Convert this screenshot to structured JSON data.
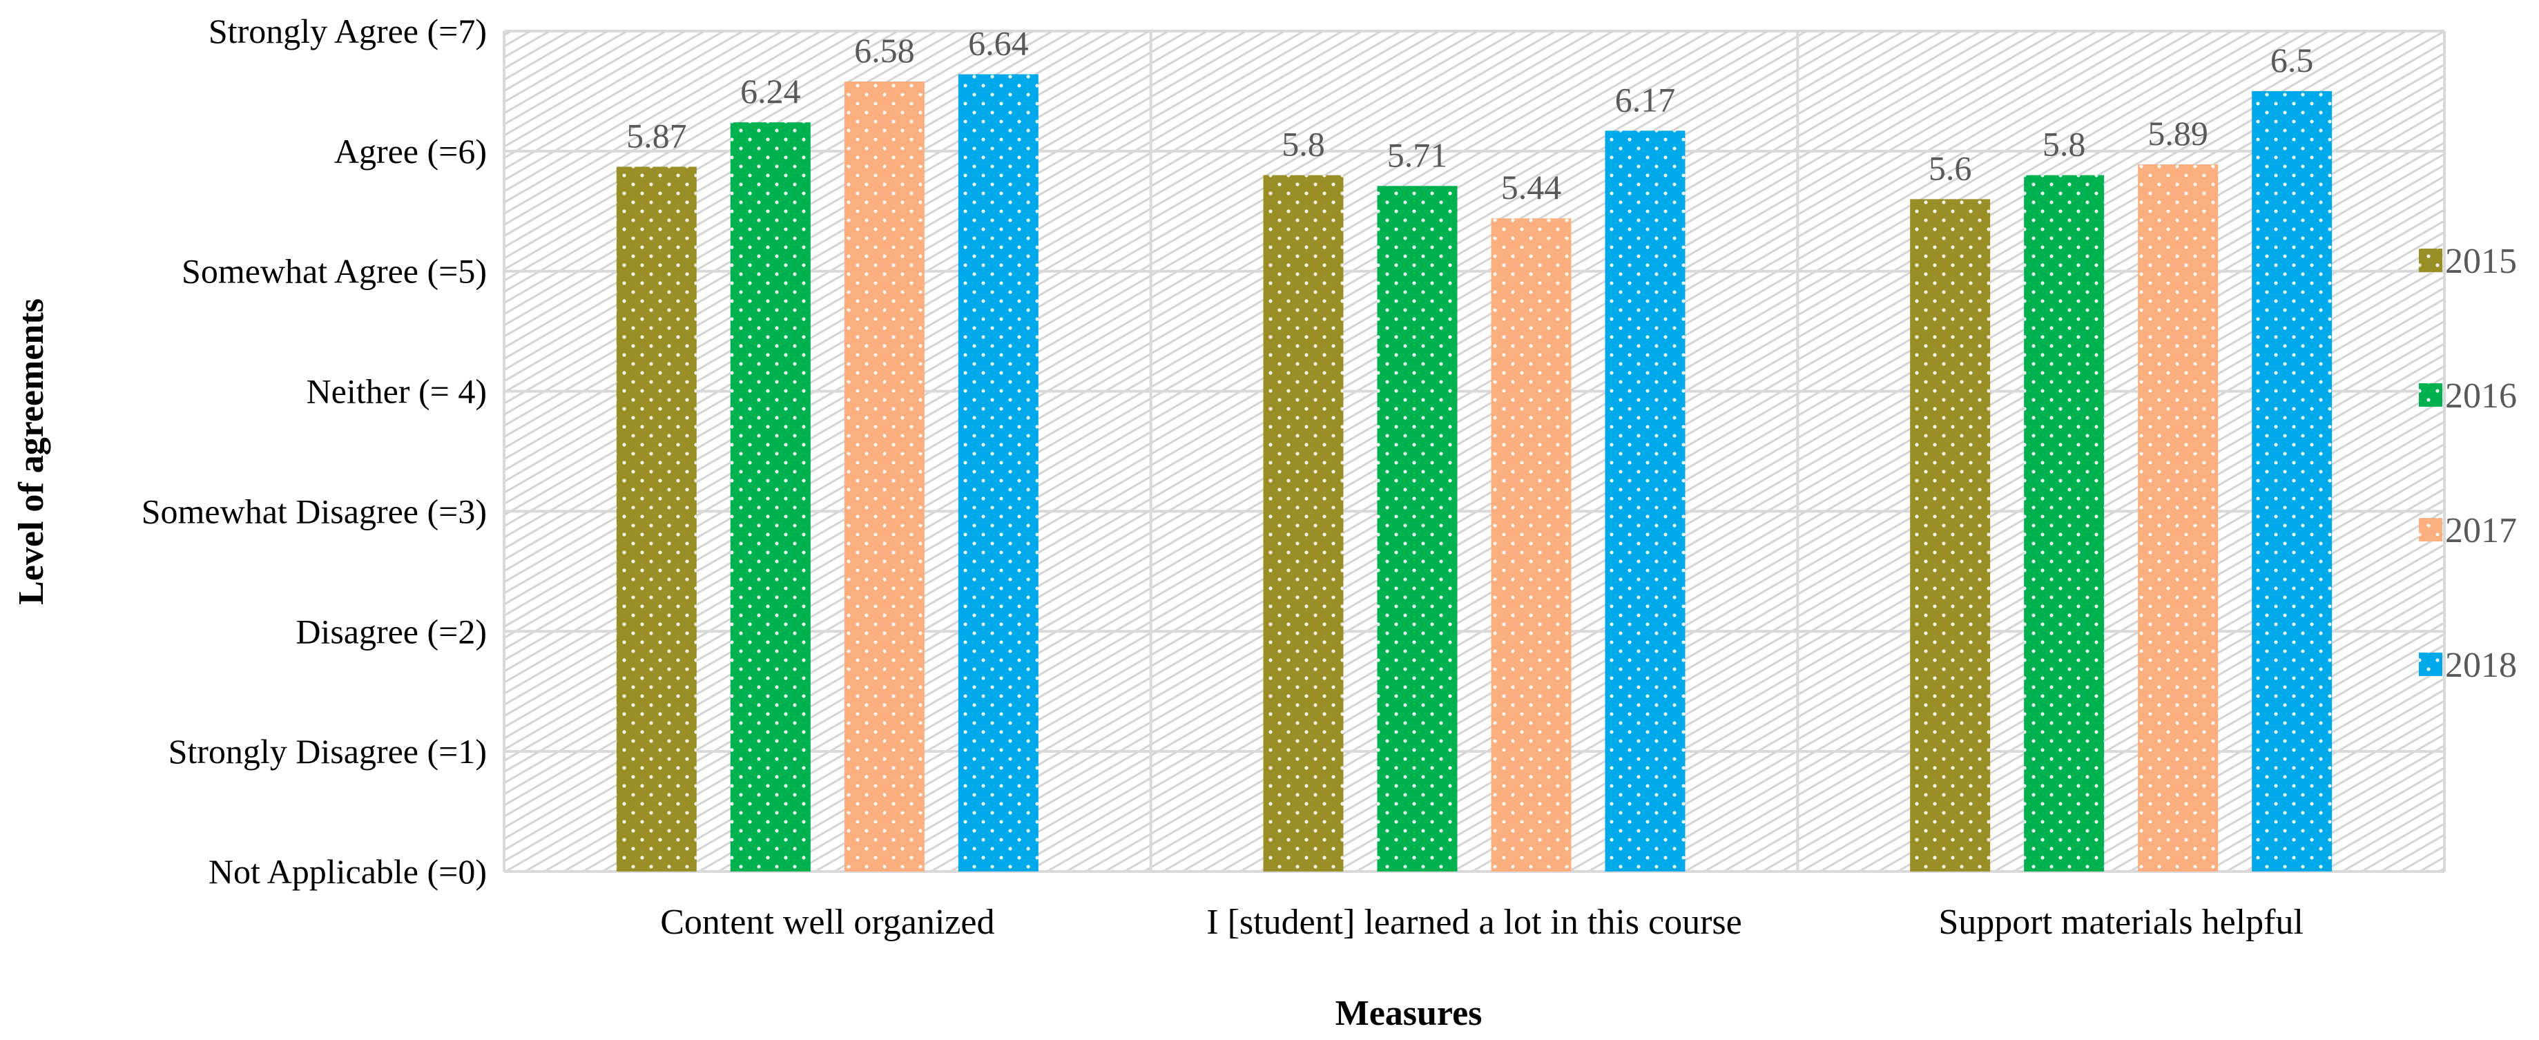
{
  "chart_data": {
    "type": "bar",
    "title": "",
    "xlabel": "Measures",
    "ylabel": "Level of agreements",
    "ylim": [
      0,
      7
    ],
    "y_ticks": [
      {
        "value": 0,
        "label": "Not Applicable (=0)"
      },
      {
        "value": 1,
        "label": "Strongly Disagree (=1)"
      },
      {
        "value": 2,
        "label": "Disagree (=2)"
      },
      {
        "value": 3,
        "label": "Somewhat Disagree (=3)"
      },
      {
        "value": 4,
        "label": "Neither (= 4)"
      },
      {
        "value": 5,
        "label": "Somewhat Agree (=5)"
      },
      {
        "value": 6,
        "label": "Agree (=6)"
      },
      {
        "value": 7,
        "label": "Strongly Agree (=7)"
      }
    ],
    "categories": [
      "Content well organized",
      "I [student] learned a lot in this course",
      "Support materials helpful"
    ],
    "series": [
      {
        "name": "2015",
        "color": "#9A8E26",
        "values": [
          5.87,
          5.8,
          5.6
        ],
        "labels": [
          "5.87",
          "5.8",
          "5.6"
        ]
      },
      {
        "name": "2016",
        "color": "#00B14F",
        "values": [
          6.24,
          5.71,
          5.8
        ],
        "labels": [
          "6.24",
          "5.71",
          "5.8"
        ]
      },
      {
        "name": "2017",
        "color": "#FBAE7E",
        "values": [
          6.58,
          5.44,
          5.89
        ],
        "labels": [
          "6.58",
          "5.44",
          "5.89"
        ]
      },
      {
        "name": "2018",
        "color": "#00A9E9",
        "values": [
          6.64,
          6.17,
          6.5
        ],
        "labels": [
          "6.64",
          "6.17",
          "6.5"
        ]
      }
    ],
    "legend_position": "right",
    "grid": true
  }
}
